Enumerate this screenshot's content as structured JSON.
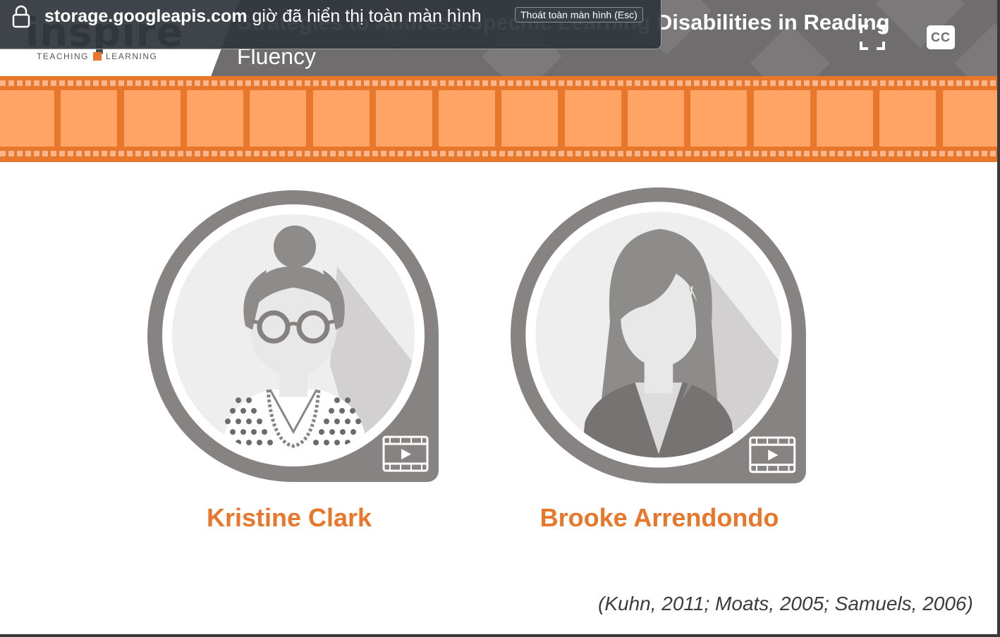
{
  "notification": {
    "domain": "storage.googleapis.com",
    "message": "giờ đã hiển thị toàn màn hình",
    "exit_button": "Thoát toàn màn hình (Esc)"
  },
  "header": {
    "logo_text": "inspire",
    "logo_left": "TEACHING",
    "logo_right": "LEARNING",
    "title_line1": "Strategies to Address Specific Learning Disabilities in Reading",
    "title_line2": "Fluency",
    "cc_label": "CC"
  },
  "people": [
    {
      "name": "Kristine Clark",
      "icon": "woman-with-bun-and-glasses-icon"
    },
    {
      "name": "Brooke Arrendondo",
      "icon": "woman-long-hair-icon"
    }
  ],
  "citation": "(Kuhn, 2011; Moats, 2005; Samuels, 2006)",
  "colors": {
    "accent": "#e8762b",
    "film_frame": "#ffa464",
    "header_bg": "#6f6d6d",
    "avatar_ring": "#888383"
  }
}
